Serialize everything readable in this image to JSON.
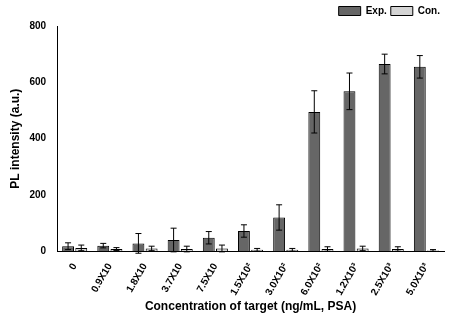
{
  "chart_data": {
    "type": "bar",
    "x_label": "Concentration of target (ng/mL, PSA)",
    "y_label": "PL intensity (a.u.)",
    "categories": [
      "0",
      "0.9X10",
      "1.8X10",
      "3.7X10",
      "7.5X10",
      "1.5X10²",
      "3.0X10²",
      "6.0X10²",
      "1.2X10³",
      "2.5X10³",
      "5.0X10³"
    ],
    "series": [
      {
        "name": "Exp.",
        "color": "#666666",
        "values": [
          18,
          20,
          28,
          40,
          48,
          72,
          120,
          495,
          568,
          665,
          655
        ],
        "errors": [
          12,
          8,
          35,
          42,
          22,
          22,
          45,
          75,
          65,
          35,
          40
        ]
      },
      {
        "name": "Con.",
        "color": "#d4d4d4",
        "values": [
          12,
          8,
          10,
          8,
          10,
          5,
          5,
          8,
          10,
          8,
          3
        ],
        "errors": [
          10,
          5,
          8,
          10,
          12,
          5,
          5,
          8,
          8,
          8,
          3
        ]
      }
    ],
    "ylim": [
      0,
      800
    ],
    "yticks": [
      0,
      200,
      400,
      600,
      800
    ],
    "grid": false,
    "legend": "top right"
  }
}
